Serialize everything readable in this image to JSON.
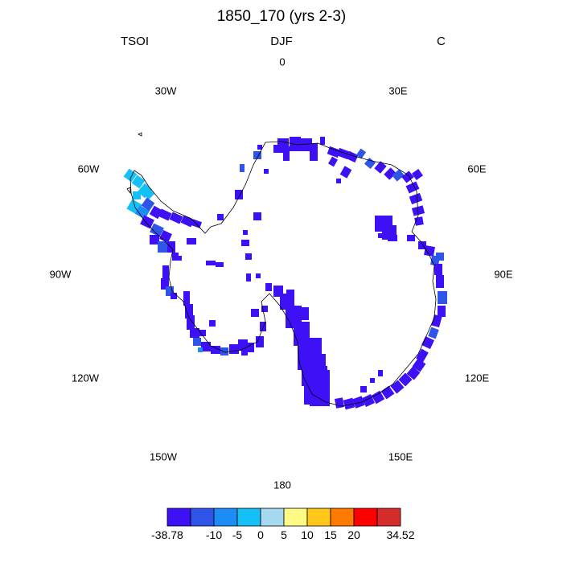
{
  "title": "1850_170 (yrs 2-3)",
  "left_label": "TSOI",
  "center_label": "DJF",
  "right_label": "C",
  "longitude_labels": [
    "0",
    "30E",
    "60E",
    "90E",
    "120E",
    "150E",
    "180",
    "150W",
    "120W",
    "90W",
    "60W",
    "30W"
  ],
  "colorbar": {
    "colors": [
      "#3d10f5",
      "#2e54e8",
      "#1e8cf5",
      "#14c0f5",
      "#a6d8f0",
      "#fff986",
      "#ffc71a",
      "#ff7a00",
      "#ff0000",
      "#d42b2b"
    ],
    "tick_labels": [
      "-38.78",
      "-10",
      "-5",
      "0",
      "5",
      "10",
      "15",
      "20",
      "34.52"
    ]
  }
}
